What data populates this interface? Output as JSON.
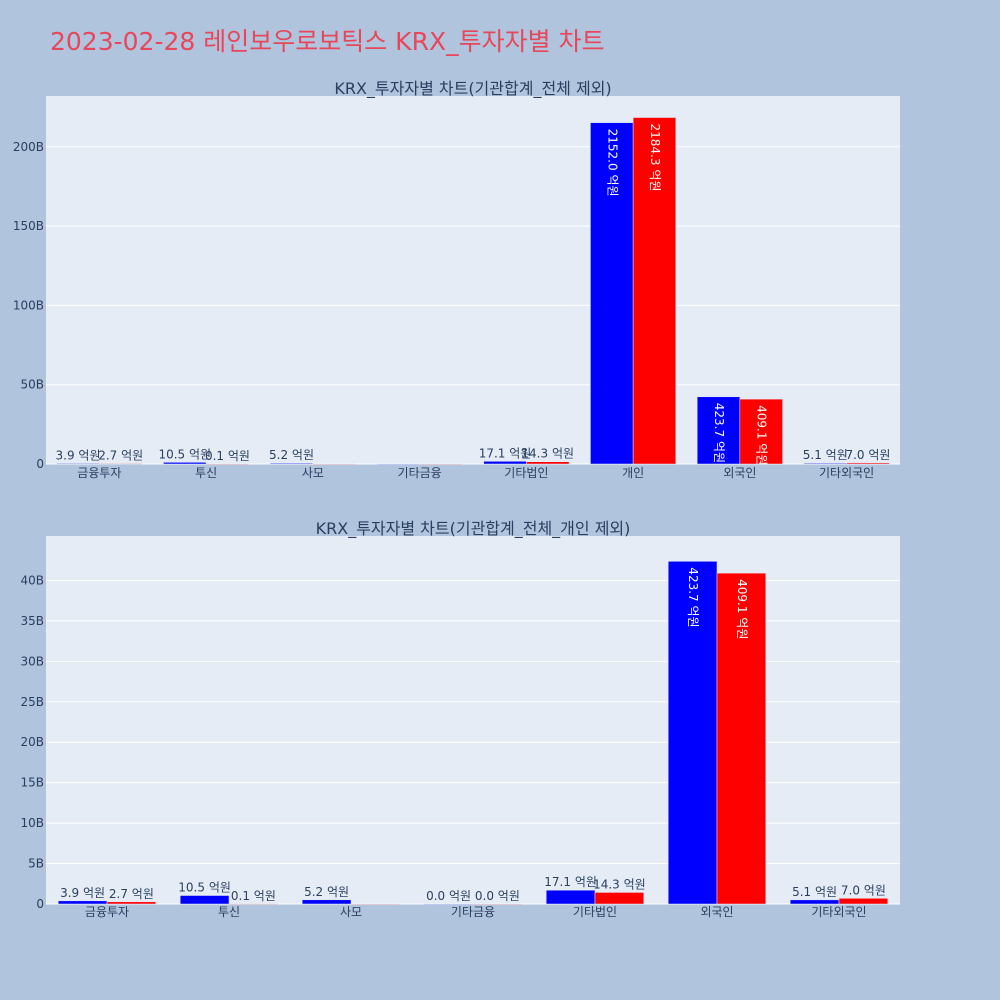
{
  "page": {
    "title": "2023-02-28 레인보우로보틱스 KRX_투자자별 차트",
    "title_color": "#e8475a",
    "background": "#b0c4de",
    "plot_background": "#e5ecf6"
  },
  "chart_data": [
    {
      "type": "bar",
      "title": "KRX_투자자별 차트(기관합계_전체 제외)",
      "categories": [
        "금융투자",
        "투신",
        "사모",
        "기타금융",
        "기타법인",
        "개인",
        "외국인",
        "기타외국인"
      ],
      "series": [
        {
          "color": "#0000ff",
          "values": [
            0.39,
            1.05,
            0.52,
            0,
            1.71,
            215.2,
            42.37,
            0.51
          ],
          "labels": [
            "3.9 억원",
            "10.5 억원",
            "5.2 억원",
            "",
            "17.1 억원",
            "2152.0 억원",
            "423.7 억원",
            "5.1 억원"
          ]
        },
        {
          "color": "#ff0000",
          "values": [
            0.27,
            0.01,
            0,
            0,
            1.43,
            218.43,
            40.91,
            0.7
          ],
          "labels": [
            "2.7 억원",
            "0.1 억원",
            "",
            "",
            "14.3 억원",
            "2184.3 억원",
            "409.1 억원",
            "7.0 억원"
          ]
        }
      ],
      "ylim": [
        0,
        232
      ],
      "yticks": [
        0,
        50,
        100,
        150,
        200
      ],
      "ytick_labels": [
        "0",
        "50B",
        "100B",
        "150B",
        "200B"
      ],
      "grid": true
    },
    {
      "type": "bar",
      "title": "KRX_투자자별 차트(기관합계_전체_개인 제외)",
      "categories": [
        "금융투자",
        "투신",
        "사모",
        "기타금융",
        "기타법인",
        "외국인",
        "기타외국인"
      ],
      "series": [
        {
          "color": "#0000ff",
          "values": [
            0.39,
            1.05,
            0.52,
            0,
            1.71,
            42.37,
            0.51
          ],
          "labels": [
            "3.9 억원",
            "10.5 억원",
            "5.2 억원",
            "0.0 억원",
            "17.1 억원",
            "423.7 억원",
            "5.1 억원"
          ]
        },
        {
          "color": "#ff0000",
          "values": [
            0.27,
            0.01,
            0,
            0,
            1.43,
            40.91,
            0.7
          ],
          "labels": [
            "2.7 억원",
            "0.1 억원",
            "",
            "0.0 억원",
            "14.3 억원",
            "409.1 억원",
            "7.0 억원"
          ]
        }
      ],
      "ylim": [
        0,
        45.5
      ],
      "yticks": [
        0,
        5,
        10,
        15,
        20,
        25,
        30,
        35,
        40
      ],
      "ytick_labels": [
        "0",
        "5B",
        "10B",
        "15B",
        "20B",
        "25B",
        "30B",
        "35B",
        "40B"
      ],
      "grid": true
    }
  ]
}
